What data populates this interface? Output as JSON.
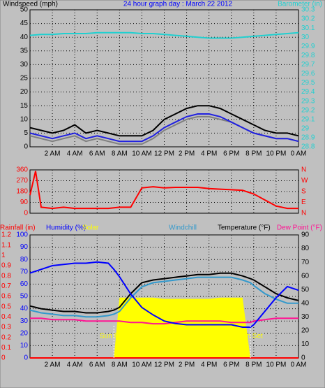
{
  "chart_data": [
    {
      "type": "line",
      "title": "24 hour graph day : March 22 2012",
      "y_label": "Windspeed (mph)",
      "y2_label": "Barometer (in)",
      "x": [
        0,
        1,
        2,
        3,
        4,
        5,
        6,
        7,
        8,
        9,
        10,
        11,
        12,
        13,
        14,
        15,
        16,
        17,
        18,
        19,
        20,
        21,
        22,
        23,
        24
      ],
      "xlim": [
        0,
        24
      ],
      "xticks": [
        {
          "value": 2,
          "label": "2 AM"
        },
        {
          "value": 4,
          "label": "4 AM"
        },
        {
          "value": 6,
          "label": "6 AM"
        },
        {
          "value": 8,
          "label": "8 AM"
        },
        {
          "value": 10,
          "label": "10 AM"
        },
        {
          "value": 12,
          "label": "12 PM"
        },
        {
          "value": 14,
          "label": "2 PM"
        },
        {
          "value": 16,
          "label": "4 PM"
        },
        {
          "value": 18,
          "label": "6 PM"
        },
        {
          "value": 20,
          "label": "8 PM"
        },
        {
          "value": 22,
          "label": "10 PM"
        },
        {
          "value": 24,
          "label": "0 AM"
        }
      ],
      "ylim": [
        0,
        50
      ],
      "yticks": [
        0,
        5,
        10,
        15,
        20,
        25,
        30,
        35,
        40,
        45,
        50
      ],
      "y2lim": [
        28.8,
        30.3
      ],
      "y2ticks": [
        28.8,
        28.9,
        29,
        29.1,
        29.2,
        29.3,
        29.4,
        29.5,
        29.6,
        29.7,
        29.8,
        29.9,
        30,
        30.1,
        30.2,
        30.3
      ],
      "grid": true,
      "series": [
        {
          "color": "#000000",
          "axis": "y",
          "values": [
            7,
            6,
            5,
            6,
            8,
            5,
            6,
            5,
            4,
            4,
            4,
            6,
            10,
            12,
            14,
            15,
            15,
            14,
            12,
            10,
            8,
            6,
            5,
            5,
            4
          ]
        },
        {
          "color": "#808080",
          "axis": "y",
          "values": [
            4,
            3,
            2,
            3,
            4,
            2,
            3,
            2,
            1,
            1,
            1,
            3,
            6,
            8,
            10,
            11,
            11,
            10,
            9,
            7,
            5,
            4,
            3,
            3,
            2
          ]
        },
        {
          "color": "#2020e0",
          "axis": "y",
          "values": [
            5,
            4,
            3,
            4,
            5,
            3,
            4,
            3,
            2,
            2,
            2,
            4,
            7,
            9,
            11,
            12,
            12,
            11,
            9,
            7,
            5,
            4,
            3,
            3,
            2
          ]
        },
        {
          "color": "#20d0d0",
          "axis": "y2",
          "values": [
            30.02,
            30.03,
            30.03,
            30.04,
            30.04,
            30.04,
            30.05,
            30.05,
            30.05,
            30.05,
            30.04,
            30.04,
            30.03,
            30.02,
            30.01,
            30.0,
            29.99,
            29.99,
            29.99,
            30.0,
            30.01,
            30.02,
            30.03,
            30.04,
            30.05
          ]
        }
      ]
    },
    {
      "type": "line",
      "x": [
        0,
        0.5,
        1,
        2,
        3,
        4,
        5,
        6,
        7,
        8,
        9,
        10,
        11,
        12,
        13,
        14,
        15,
        16,
        17,
        18,
        19,
        20,
        21,
        22,
        23,
        24
      ],
      "xlim": [
        0,
        24
      ],
      "xticks": [
        {
          "value": 2,
          "label": "2 AM"
        },
        {
          "value": 4,
          "label": "4 AM"
        },
        {
          "value": 6,
          "label": "6 AM"
        },
        {
          "value": 8,
          "label": "8 AM"
        },
        {
          "value": 10,
          "label": "10 AM"
        },
        {
          "value": 12,
          "label": "12 PM"
        },
        {
          "value": 14,
          "label": "2 PM"
        },
        {
          "value": 16,
          "label": "4 PM"
        },
        {
          "value": 18,
          "label": "6 PM"
        },
        {
          "value": 20,
          "label": "8 PM"
        },
        {
          "value": 22,
          "label": "10 PM"
        },
        {
          "value": 24,
          "label": "0 AM"
        }
      ],
      "ylim": [
        0,
        360
      ],
      "yticks": [
        0,
        90,
        180,
        270,
        360
      ],
      "y2lim": [
        0,
        360
      ],
      "y2ticks": [
        {
          "value": 0,
          "label": "N"
        },
        {
          "value": 90,
          "label": "E"
        },
        {
          "value": 180,
          "label": "S"
        },
        {
          "value": 270,
          "label": "W"
        },
        {
          "value": 360,
          "label": "N"
        }
      ],
      "grid": true,
      "series": [
        {
          "color": "#ff0000",
          "axis": "y",
          "values": [
            150,
            350,
            50,
            40,
            50,
            40,
            40,
            40,
            40,
            50,
            50,
            210,
            220,
            210,
            215,
            215,
            215,
            205,
            200,
            195,
            190,
            160,
            110,
            60,
            40,
            40
          ]
        }
      ]
    },
    {
      "type": "line",
      "y3_label": "Rainfall (in)",
      "y_label": "Humidity (%)",
      "solar_label": "Solar",
      "windchill_label": "Windchill",
      "y2_label": "Temperature (°F)",
      "dew_label": "Dew Point (°F)",
      "annotations": [
        {
          "text": "Sun Rise",
          "x": 7.5
        },
        {
          "text": "Sun Set",
          "x": 19.7
        }
      ],
      "x": [
        0,
        1,
        2,
        3,
        4,
        5,
        6,
        7,
        7.5,
        8,
        9,
        10,
        11,
        12,
        13,
        14,
        15,
        16,
        17,
        18,
        19,
        19.7,
        20,
        21,
        22,
        23,
        24
      ],
      "xlim": [
        0,
        24
      ],
      "xticks": [
        {
          "value": 2,
          "label": "2 AM"
        },
        {
          "value": 4,
          "label": "4 AM"
        },
        {
          "value": 6,
          "label": "6 AM"
        },
        {
          "value": 8,
          "label": "8 AM"
        },
        {
          "value": 10,
          "label": "10 AM"
        },
        {
          "value": 12,
          "label": "12 PM"
        },
        {
          "value": 14,
          "label": "2 PM"
        },
        {
          "value": 16,
          "label": "4 PM"
        },
        {
          "value": 18,
          "label": "6 PM"
        },
        {
          "value": 20,
          "label": "8 PM"
        },
        {
          "value": 22,
          "label": "10 PM"
        },
        {
          "value": 24,
          "label": "0 AM"
        }
      ],
      "ylim": [
        0,
        100
      ],
      "yticks": [
        0,
        10,
        20,
        30,
        40,
        50,
        60,
        70,
        80,
        90,
        100
      ],
      "y2lim": [
        0,
        90
      ],
      "y2ticks": [
        0,
        10,
        20,
        30,
        40,
        50,
        60,
        70,
        80,
        90
      ],
      "y3lim": [
        0,
        1.2
      ],
      "y3ticks": [
        0,
        0.1,
        0.2,
        0.3,
        0.4,
        0.5,
        0.6,
        0.7,
        0.8,
        0.9,
        1,
        1.1,
        1.2
      ],
      "grid": true,
      "series": [
        {
          "color": "#ffff00",
          "axis": "y",
          "area": true,
          "values": [
            0,
            0,
            0,
            0,
            0,
            0,
            0,
            0,
            0,
            49,
            49,
            49,
            49,
            48,
            48,
            48,
            48,
            48,
            49,
            49,
            49,
            0,
            0,
            0,
            0,
            0,
            0
          ]
        },
        {
          "color": "#ff0000",
          "axis": "y3",
          "values": [
            0,
            0,
            0,
            0,
            0,
            0,
            0,
            0,
            0,
            0,
            0,
            0,
            0,
            0,
            0,
            0,
            0,
            0,
            0,
            0,
            0,
            0,
            0,
            0,
            0,
            0,
            0
          ]
        },
        {
          "color": "#ff1493",
          "axis": "y2",
          "values": [
            29,
            29,
            28,
            28,
            28,
            27,
            27,
            27,
            27,
            27,
            26,
            26,
            25,
            25,
            26,
            27,
            27,
            27,
            27,
            26,
            26,
            26,
            27,
            28,
            29,
            29,
            29
          ]
        },
        {
          "color": "#3399cc",
          "axis": "y2",
          "values": [
            35,
            33,
            32,
            31,
            31,
            30,
            30,
            31,
            32,
            34,
            44,
            52,
            55,
            56,
            57,
            58,
            59,
            59,
            59,
            59,
            57,
            55,
            53,
            47,
            43,
            40,
            40
          ]
        },
        {
          "color": "#000000",
          "axis": "y2",
          "values": [
            38,
            36,
            35,
            34,
            34,
            33,
            33,
            34,
            35,
            37,
            47,
            55,
            57,
            58,
            59,
            60,
            61,
            61,
            62,
            62,
            60,
            58,
            57,
            52,
            47,
            44,
            42
          ]
        },
        {
          "color": "#0000ff",
          "axis": "y",
          "values": [
            69,
            72,
            75,
            76,
            77,
            77,
            78,
            77,
            72,
            66,
            52,
            41,
            35,
            30,
            28,
            27,
            27,
            27,
            27,
            27,
            25,
            25,
            27,
            38,
            49,
            58,
            55
          ]
        }
      ]
    }
  ]
}
